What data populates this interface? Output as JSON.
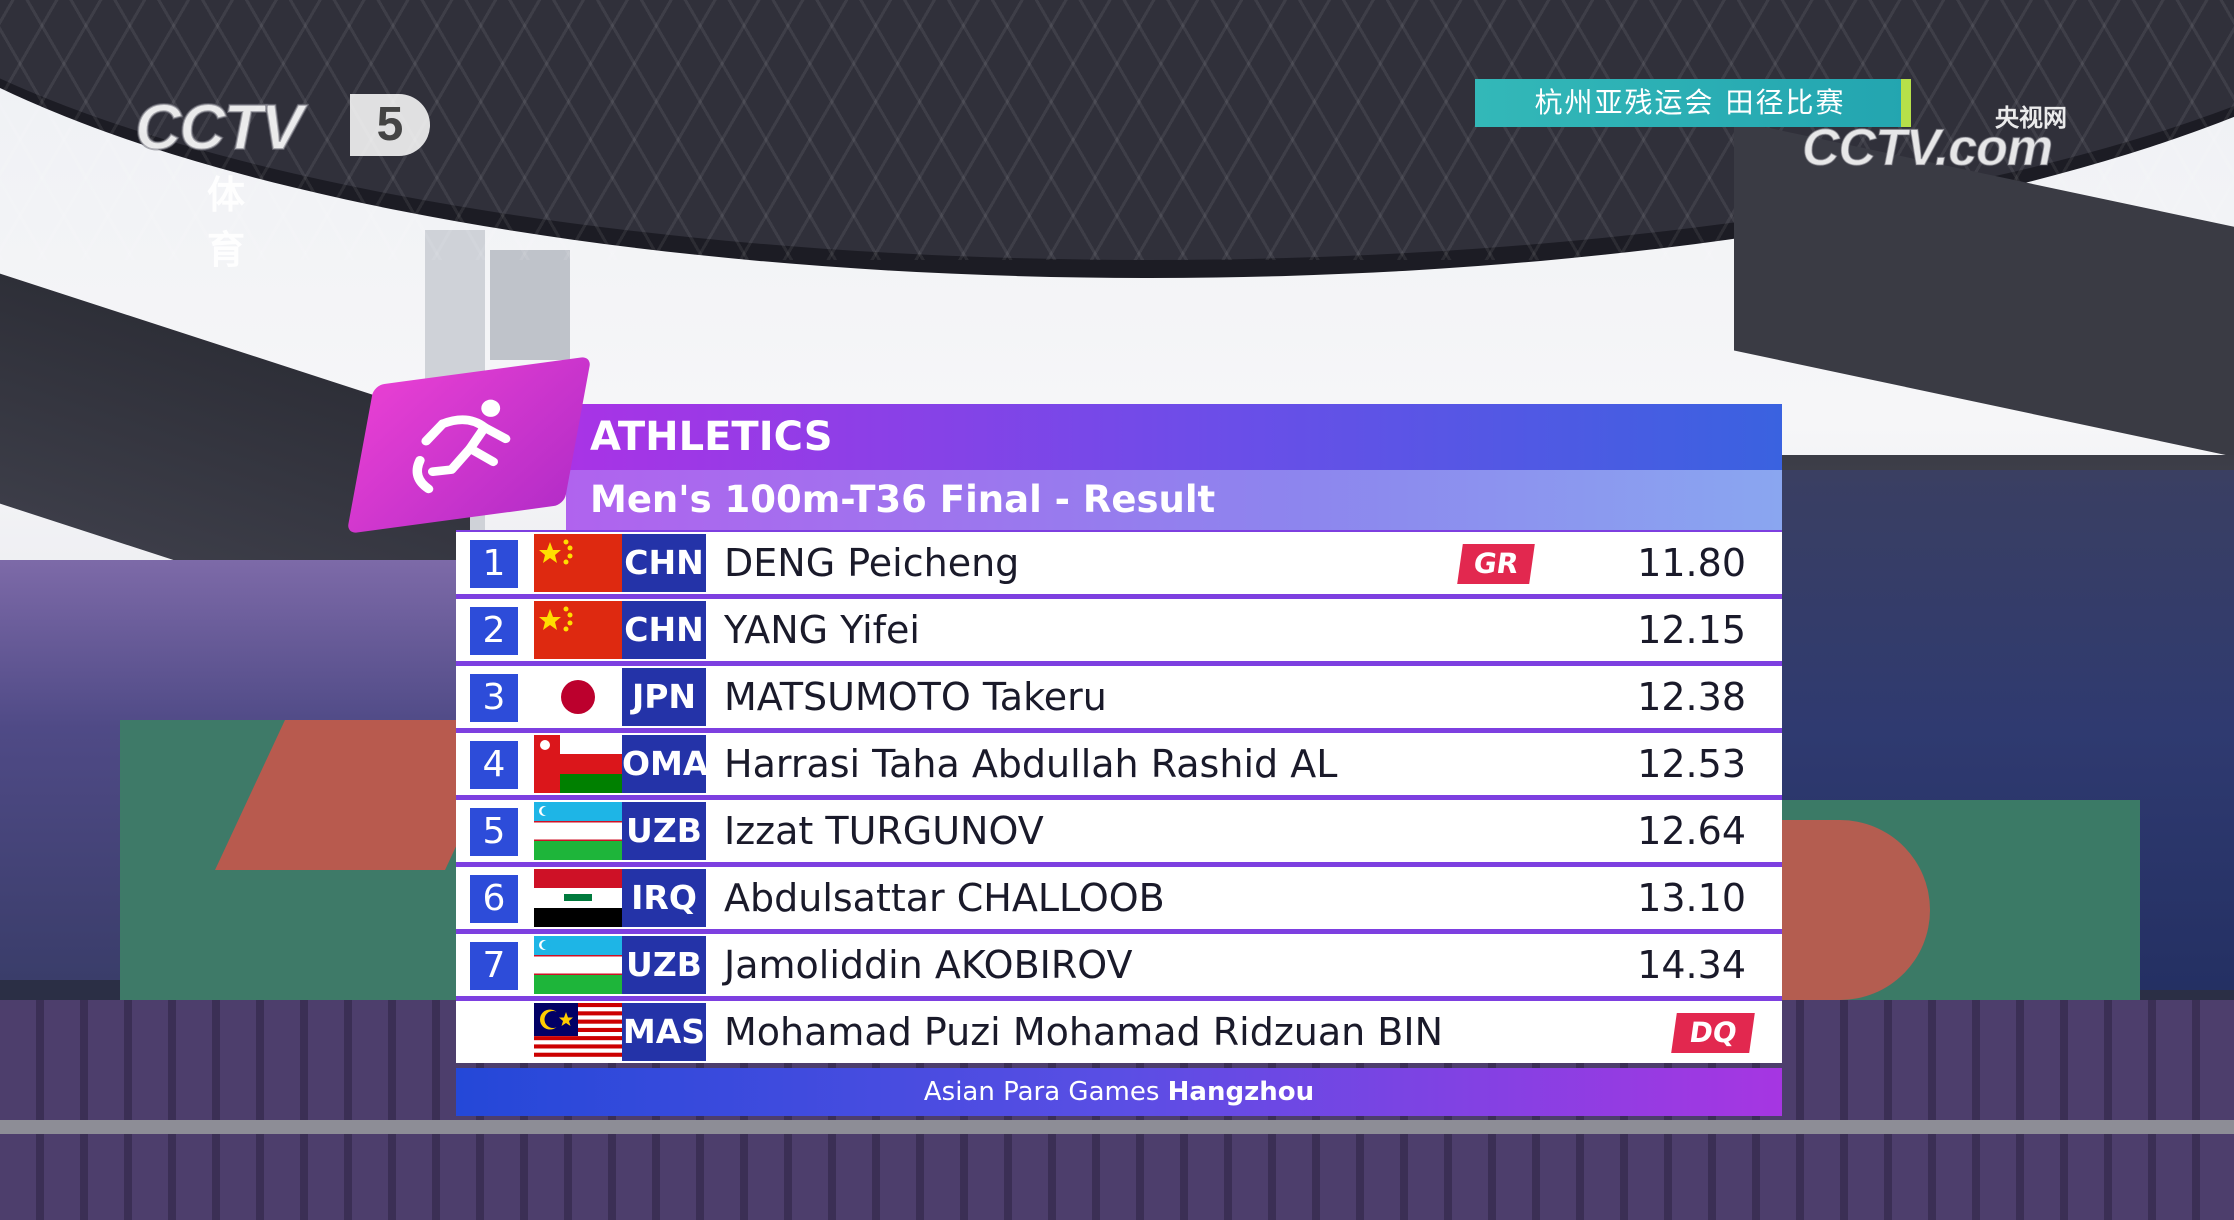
{
  "broadcaster": {
    "channel_logo": "CCTV",
    "channel_number": "5",
    "channel_subtitle": "体育",
    "event_banner": "杭州亚残运会  田径比赛",
    "web_logo": "CCTV.com",
    "web_logo_cn": "央视网"
  },
  "board": {
    "sport": "ATHLETICS",
    "event": "Men's 100m-T36 Final - Result",
    "footer_prefix": "Asian Para Games ",
    "footer_city": "Hangzhou",
    "icon": "running-athlete-icon",
    "colors": {
      "rank_bg": "#2d4cd9",
      "code_bg": "#2433a8",
      "badge": "#e2284f",
      "accent": "#a933e6"
    },
    "results": [
      {
        "rank": "1",
        "code": "CHN",
        "flag": "china-flag-icon",
        "name": "DENG Peicheng",
        "badge": "GR",
        "time": "11.80"
      },
      {
        "rank": "2",
        "code": "CHN",
        "flag": "china-flag-icon",
        "name": "YANG Yifei",
        "badge": "",
        "time": "12.15"
      },
      {
        "rank": "3",
        "code": "JPN",
        "flag": "japan-flag-icon",
        "name": "MATSUMOTO Takeru",
        "badge": "",
        "time": "12.38"
      },
      {
        "rank": "4",
        "code": "OMA",
        "flag": "oman-flag-icon",
        "name": "Harrasi Taha Abdullah Rashid AL",
        "badge": "",
        "time": "12.53"
      },
      {
        "rank": "5",
        "code": "UZB",
        "flag": "uzbekistan-flag-icon",
        "name": "Izzat TURGUNOV",
        "badge": "",
        "time": "12.64"
      },
      {
        "rank": "6",
        "code": "IRQ",
        "flag": "iraq-flag-icon",
        "name": "Abdulsattar CHALLOOB",
        "badge": "",
        "time": "13.10"
      },
      {
        "rank": "7",
        "code": "UZB",
        "flag": "uzbekistan-flag-icon",
        "name": "Jamoliddin AKOBIROV",
        "badge": "",
        "time": "14.34"
      },
      {
        "rank": "",
        "code": "MAS",
        "flag": "malaysia-flag-icon",
        "name": "Mohamad Puzi Mohamad Ridzuan BIN",
        "badge": "DQ",
        "time": ""
      }
    ]
  }
}
